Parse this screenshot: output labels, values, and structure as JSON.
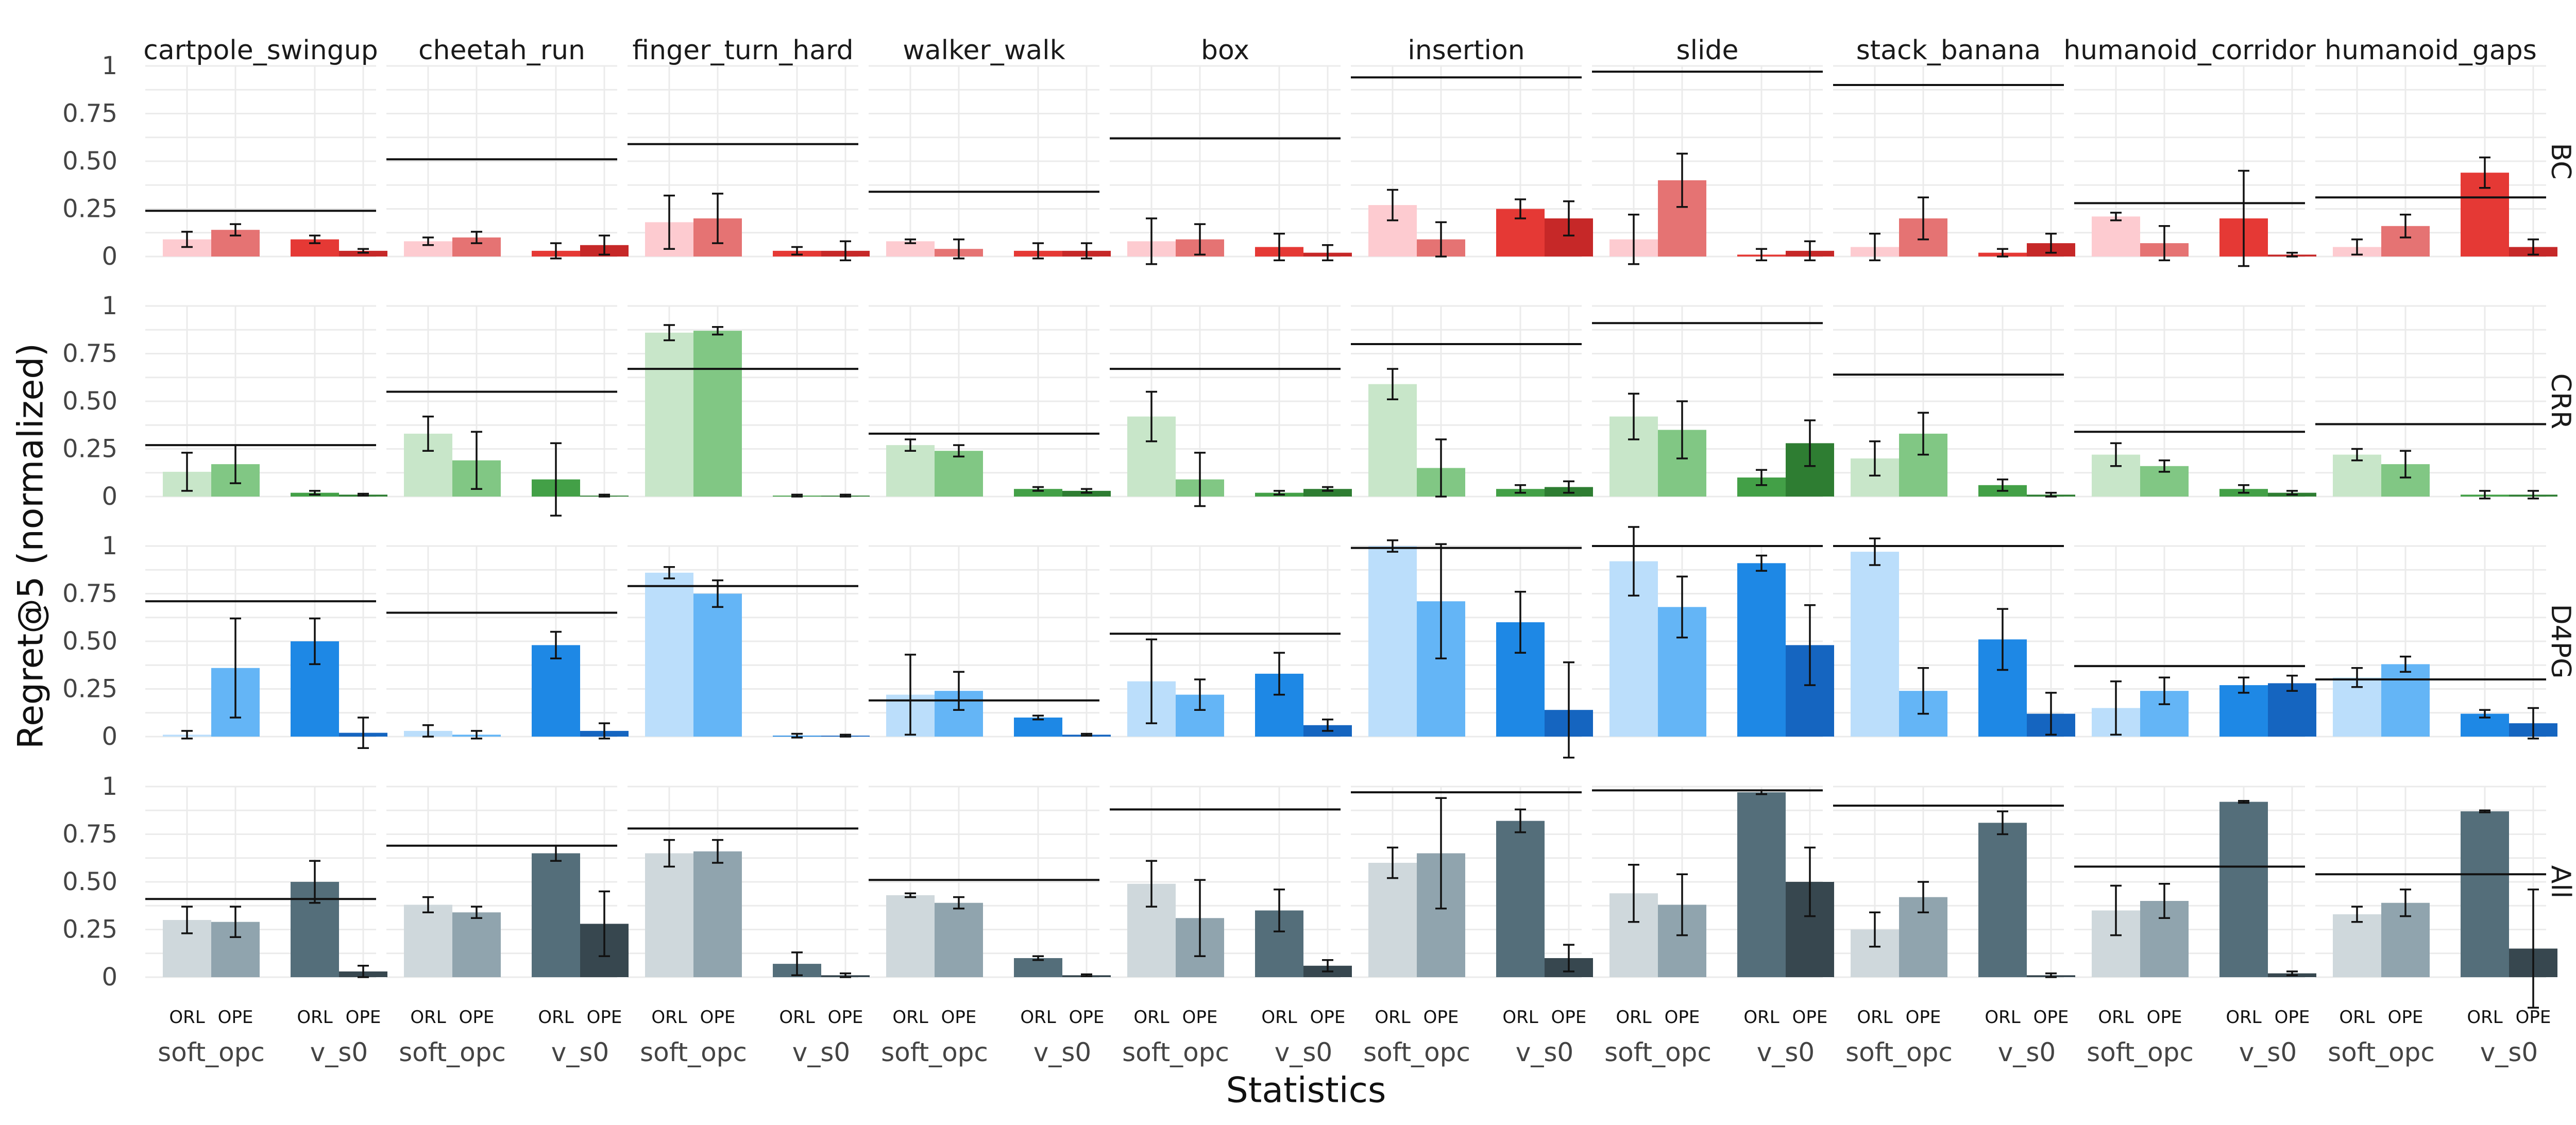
{
  "chart_data": {
    "type": "bar",
    "xlabel": "Statistics",
    "ylabel": "Regret@5 (normalized)",
    "ylim": [
      0,
      1
    ],
    "yticks": [
      "0",
      "0.25",
      "0.50",
      "0.75",
      "1"
    ],
    "column_facets": [
      "cartpole_swingup",
      "cheetah_run",
      "finger_turn_hard",
      "walker_walk",
      "box",
      "insertion",
      "slide",
      "stack_banana",
      "humanoid_corridor",
      "humanoid_gaps"
    ],
    "row_facets": [
      "BC",
      "CRR",
      "D4PG",
      "All"
    ],
    "categories": [
      "ORL",
      "OPE",
      "ORL",
      "OPE"
    ],
    "groups": [
      "soft_opc",
      "v_s0"
    ],
    "row_colors": {
      "BC": [
        "#fdcbd0",
        "#e57373",
        "#e53935",
        "#c62828"
      ],
      "CRR": [
        "#c8e6c9",
        "#81c784",
        "#43a047",
        "#2e7d32"
      ],
      "D4PG": [
        "#bbdefb",
        "#64b5f6",
        "#1e88e5",
        "#1565c0"
      ],
      "All": [
        "#cfd8dc",
        "#90a4ae",
        "#546e7a",
        "#37474f"
      ]
    },
    "panels": {
      "BC": [
        {
          "values": [
            0.09,
            0.14,
            0.09,
            0.03
          ],
          "errors": [
            0.04,
            0.03,
            0.02,
            0.01
          ],
          "baseline": 0.24
        },
        {
          "values": [
            0.08,
            0.1,
            0.03,
            0.06
          ],
          "errors": [
            0.02,
            0.03,
            0.04,
            0.05
          ],
          "baseline": 0.51
        },
        {
          "values": [
            0.18,
            0.2,
            0.03,
            0.03
          ],
          "errors": [
            0.14,
            0.13,
            0.02,
            0.05
          ],
          "baseline": 0.59
        },
        {
          "values": [
            0.08,
            0.04,
            0.03,
            0.03
          ],
          "errors": [
            0.01,
            0.05,
            0.04,
            0.04
          ],
          "baseline": 0.34
        },
        {
          "values": [
            0.08,
            0.09,
            0.05,
            0.02
          ],
          "errors": [
            0.12,
            0.08,
            0.07,
            0.04
          ],
          "baseline": 0.62
        },
        {
          "values": [
            0.27,
            0.09,
            0.25,
            0.2
          ],
          "errors": [
            0.08,
            0.09,
            0.05,
            0.09
          ],
          "baseline": 0.94
        },
        {
          "values": [
            0.09,
            0.4,
            0.01,
            0.03
          ],
          "errors": [
            0.13,
            0.14,
            0.03,
            0.05
          ],
          "baseline": 0.97
        },
        {
          "values": [
            0.05,
            0.2,
            0.02,
            0.07
          ],
          "errors": [
            0.07,
            0.11,
            0.02,
            0.05
          ],
          "baseline": 0.9
        },
        {
          "values": [
            0.21,
            0.07,
            0.2,
            0.01
          ],
          "errors": [
            0.02,
            0.09,
            0.25,
            0.01
          ],
          "baseline": 0.28
        },
        {
          "values": [
            0.05,
            0.16,
            0.44,
            0.05
          ],
          "errors": [
            0.04,
            0.06,
            0.08,
            0.04
          ],
          "baseline": 0.31
        }
      ],
      "CRR": [
        {
          "values": [
            0.13,
            0.17,
            0.02,
            0.01
          ],
          "errors": [
            0.1,
            0.1,
            0.01,
            0.005
          ],
          "baseline": 0.27
        },
        {
          "values": [
            0.33,
            0.19,
            0.09,
            0.005
          ],
          "errors": [
            0.09,
            0.15,
            0.19,
            0.005
          ],
          "baseline": 0.55
        },
        {
          "values": [
            0.86,
            0.87,
            0.005,
            0.005
          ],
          "errors": [
            0.04,
            0.02,
            0.005,
            0.005
          ],
          "baseline": 0.67
        },
        {
          "values": [
            0.27,
            0.24,
            0.04,
            0.03
          ],
          "errors": [
            0.03,
            0.03,
            0.01,
            0.01
          ],
          "baseline": 0.33
        },
        {
          "values": [
            0.42,
            0.09,
            0.02,
            0.04
          ],
          "errors": [
            0.13,
            0.14,
            0.01,
            0.01
          ],
          "baseline": 0.67
        },
        {
          "values": [
            0.59,
            0.15,
            0.04,
            0.05
          ],
          "errors": [
            0.08,
            0.15,
            0.02,
            0.03
          ],
          "baseline": 0.8
        },
        {
          "values": [
            0.42,
            0.35,
            0.1,
            0.28
          ],
          "errors": [
            0.12,
            0.15,
            0.04,
            0.12
          ],
          "baseline": 0.91
        },
        {
          "values": [
            0.2,
            0.33,
            0.06,
            0.01
          ],
          "errors": [
            0.09,
            0.11,
            0.03,
            0.01
          ],
          "baseline": 0.64
        },
        {
          "values": [
            0.22,
            0.16,
            0.04,
            0.02
          ],
          "errors": [
            0.06,
            0.03,
            0.02,
            0.01
          ],
          "baseline": 0.34
        },
        {
          "values": [
            0.22,
            0.17,
            0.01,
            0.01
          ],
          "errors": [
            0.03,
            0.07,
            0.02,
            0.02
          ],
          "baseline": 0.38
        }
      ],
      "D4PG": [
        {
          "values": [
            0.01,
            0.36,
            0.5,
            0.02
          ],
          "errors": [
            0.02,
            0.26,
            0.12,
            0.08
          ],
          "baseline": 0.71
        },
        {
          "values": [
            0.03,
            0.01,
            0.48,
            0.03
          ],
          "errors": [
            0.03,
            0.02,
            0.07,
            0.04
          ],
          "baseline": 0.65
        },
        {
          "values": [
            0.86,
            0.75,
            0.005,
            0.005
          ],
          "errors": [
            0.03,
            0.07,
            0.01,
            0.005
          ],
          "baseline": 0.79
        },
        {
          "values": [
            0.22,
            0.24,
            0.1,
            0.01
          ],
          "errors": [
            0.21,
            0.1,
            0.01,
            0.005
          ],
          "baseline": 0.19
        },
        {
          "values": [
            0.29,
            0.22,
            0.33,
            0.06
          ],
          "errors": [
            0.22,
            0.08,
            0.11,
            0.03
          ],
          "baseline": 0.54
        },
        {
          "values": [
            1.0,
            0.71,
            0.6,
            0.14
          ],
          "errors": [
            0.03,
            0.3,
            0.16,
            0.25
          ],
          "baseline": 0.99
        },
        {
          "values": [
            0.92,
            0.68,
            0.91,
            0.48
          ],
          "errors": [
            0.18,
            0.16,
            0.04,
            0.21
          ],
          "baseline": 1.0
        },
        {
          "values": [
            0.97,
            0.24,
            0.51,
            0.12
          ],
          "errors": [
            0.07,
            0.12,
            0.16,
            0.11
          ],
          "baseline": 1.0
        },
        {
          "values": [
            0.15,
            0.24,
            0.27,
            0.28
          ],
          "errors": [
            0.14,
            0.07,
            0.04,
            0.04
          ],
          "baseline": 0.37
        },
        {
          "values": [
            0.31,
            0.38,
            0.12,
            0.07
          ],
          "errors": [
            0.05,
            0.04,
            0.02,
            0.08
          ],
          "baseline": 0.3
        }
      ],
      "All": [
        {
          "values": [
            0.3,
            0.29,
            0.5,
            0.03
          ],
          "errors": [
            0.07,
            0.08,
            0.11,
            0.03
          ],
          "baseline": 0.41
        },
        {
          "values": [
            0.38,
            0.34,
            0.65,
            0.28
          ],
          "errors": [
            0.04,
            0.03,
            0.04,
            0.17
          ],
          "baseline": 0.69
        },
        {
          "values": [
            0.65,
            0.66,
            0.07,
            0.01
          ],
          "errors": [
            0.07,
            0.06,
            0.06,
            0.01
          ],
          "baseline": 0.78
        },
        {
          "values": [
            0.43,
            0.39,
            0.1,
            0.01
          ],
          "errors": [
            0.01,
            0.03,
            0.01,
            0.005
          ],
          "baseline": 0.51
        },
        {
          "values": [
            0.49,
            0.31,
            0.35,
            0.06
          ],
          "errors": [
            0.12,
            0.2,
            0.11,
            0.03
          ],
          "baseline": 0.88
        },
        {
          "values": [
            0.6,
            0.65,
            0.82,
            0.1
          ],
          "errors": [
            0.08,
            0.29,
            0.06,
            0.07
          ],
          "baseline": 0.97
        },
        {
          "values": [
            0.44,
            0.38,
            0.97,
            0.5
          ],
          "errors": [
            0.15,
            0.16,
            0.01,
            0.18
          ],
          "baseline": 0.98
        },
        {
          "values": [
            0.25,
            0.42,
            0.81,
            0.01
          ],
          "errors": [
            0.09,
            0.08,
            0.06,
            0.01
          ],
          "baseline": 0.9
        },
        {
          "values": [
            0.35,
            0.4,
            0.92,
            0.02
          ],
          "errors": [
            0.13,
            0.09,
            0.005,
            0.01
          ],
          "baseline": 0.58
        },
        {
          "values": [
            0.33,
            0.39,
            0.87,
            0.15
          ],
          "errors": [
            0.04,
            0.07,
            0.005,
            0.31
          ],
          "baseline": 0.54
        }
      ]
    }
  }
}
